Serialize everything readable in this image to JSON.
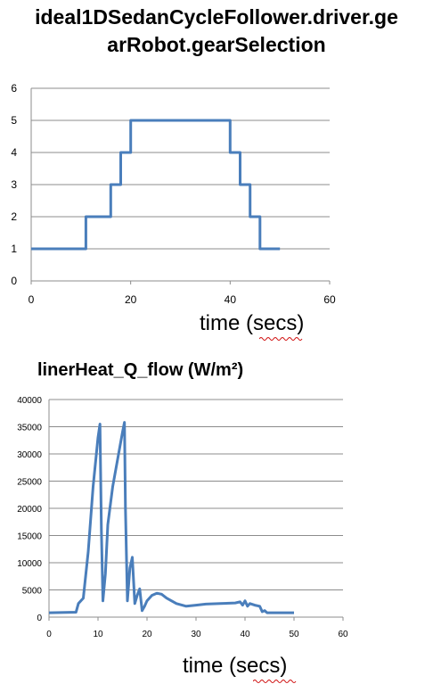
{
  "chart_data": [
    {
      "type": "line",
      "title": "ideal1DSedanCycleFollower.driver.gearRobot.gearSelection",
      "title_line1": "ideal1DSedanCycleFollower.driver.ge",
      "title_line2": "arRobot.gearSelection",
      "xlabel": "time (secs)",
      "ylabel": "",
      "xlim": [
        0,
        60
      ],
      "ylim": [
        0,
        6
      ],
      "xticks": [
        "0",
        "20",
        "40",
        "60"
      ],
      "yticks": [
        "0",
        "1",
        "2",
        "3",
        "4",
        "5",
        "6"
      ],
      "grid": "horizontal",
      "legend": "none",
      "color": "#4a7ebb",
      "series": [
        {
          "x": [
            0,
            11,
            11,
            16,
            16,
            18,
            18,
            20,
            20,
            40,
            40,
            42,
            42,
            44,
            44,
            46,
            46,
            50
          ],
          "y": [
            1,
            1,
            2,
            2,
            3,
            3,
            4,
            4,
            5,
            5,
            4,
            4,
            3,
            3,
            2,
            2,
            1,
            1
          ]
        }
      ]
    },
    {
      "type": "line",
      "title": "linerHeat_Q_flow (W/m²)",
      "xlabel": "time (secs)",
      "ylabel": "",
      "xlim": [
        0,
        60
      ],
      "ylim": [
        0,
        40000
      ],
      "xticks": [
        "0",
        "10",
        "20",
        "30",
        "40",
        "50",
        "60"
      ],
      "yticks": [
        "0",
        "5000",
        "10000",
        "15000",
        "20000",
        "25000",
        "30000",
        "35000",
        "40000"
      ],
      "grid": "horizontal",
      "legend": "none",
      "color": "#4a7ebb",
      "series": [
        {
          "x": [
            0,
            5.5,
            6,
            7,
            8,
            9,
            10,
            10.4,
            10.7,
            11,
            11.5,
            12,
            13,
            14,
            15,
            15.4,
            15.6,
            16,
            16.5,
            17,
            17.5,
            18,
            18.5,
            19,
            19.5,
            20,
            21,
            22,
            23,
            24,
            26,
            28,
            30,
            32,
            35,
            38,
            39,
            39.5,
            40,
            40.5,
            41,
            42,
            43,
            43.5,
            44,
            44.5,
            45,
            50
          ],
          "y": [
            800,
            900,
            2500,
            3500,
            12000,
            24000,
            33000,
            35500,
            16000,
            3000,
            8000,
            17000,
            24000,
            29000,
            34000,
            35800,
            20000,
            3000,
            9000,
            11000,
            2500,
            4000,
            5200,
            1200,
            2000,
            3000,
            4000,
            4400,
            4200,
            3500,
            2500,
            2000,
            2200,
            2400,
            2500,
            2600,
            2800,
            2200,
            3000,
            2000,
            2500,
            2200,
            2000,
            1000,
            1200,
            800,
            800,
            800
          ]
        }
      ]
    }
  ]
}
